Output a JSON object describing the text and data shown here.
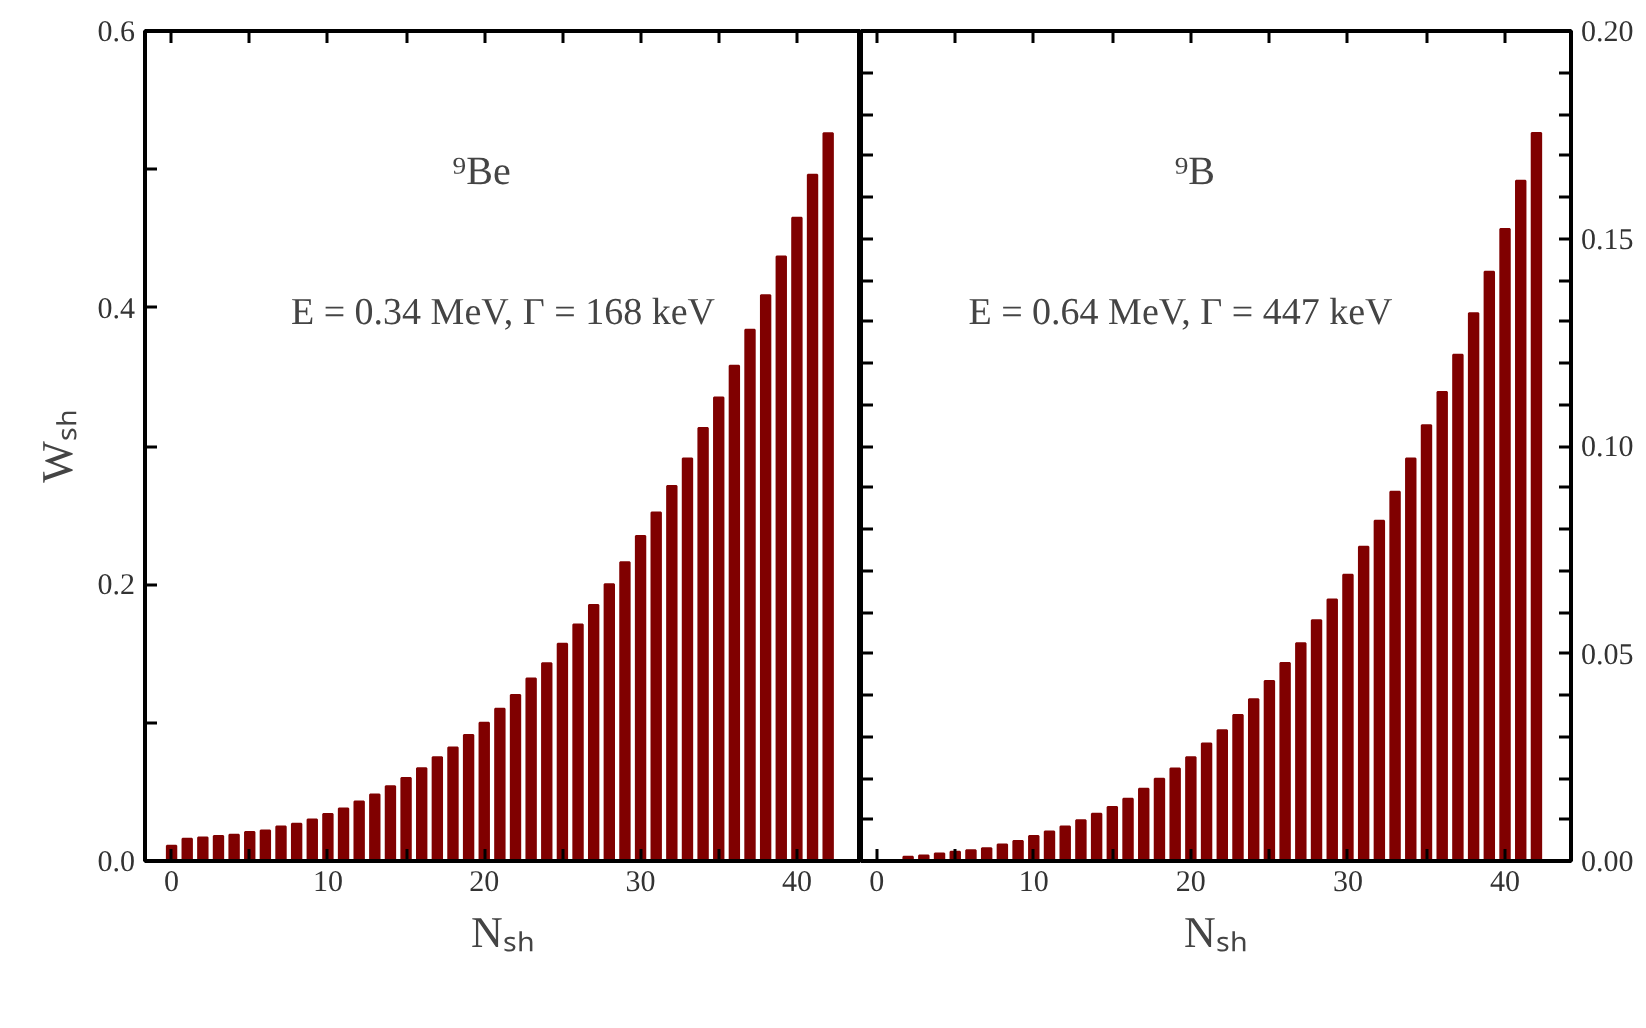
{
  "chart_data": [
    {
      "type": "bar",
      "xlabel": "Nₛₕ",
      "ylabel": "Wₛₕ",
      "annotations": [
        "⁹Be",
        "E = 0.34 MeV, Γ = 168 keV"
      ],
      "x": [
        0,
        1,
        2,
        3,
        4,
        5,
        6,
        7,
        8,
        9,
        10,
        11,
        12,
        13,
        14,
        15,
        16,
        17,
        18,
        19,
        20,
        21,
        22,
        23,
        24,
        25,
        26,
        27,
        28,
        29,
        30,
        31,
        32,
        33,
        34,
        35,
        36,
        37,
        38,
        39,
        40,
        41,
        42
      ],
      "series": [
        {
          "color": "#800000",
          "values": [
            0.011,
            0.016,
            0.017,
            0.018,
            0.019,
            0.021,
            0.022,
            0.025,
            0.027,
            0.03,
            0.034,
            0.038,
            0.043,
            0.048,
            0.054,
            0.06,
            0.067,
            0.075,
            0.082,
            0.091,
            0.1,
            0.11,
            0.12,
            0.132,
            0.143,
            0.157,
            0.171,
            0.185,
            0.2,
            0.216,
            0.235,
            0.252,
            0.271,
            0.291,
            0.313,
            0.335,
            0.358,
            0.384,
            0.409,
            0.437,
            0.465,
            0.496,
            0.526
          ]
        }
      ],
      "xlim": [
        -1.7,
        44.1
      ],
      "ylim": [
        0,
        0.6
      ],
      "xticks": [
        0,
        {
          "value": 5,
          "label": null
        },
        10,
        {
          "value": 15,
          "label": null
        },
        20,
        {
          "value": 25,
          "label": null
        },
        30,
        {
          "value": 35,
          "label": null
        },
        40
      ],
      "yticks": [
        {
          "value": 0,
          "label": "0.0"
        },
        {
          "value": 0.1,
          "label": null
        },
        {
          "value": 0.2,
          "label": "0.2"
        },
        {
          "value": 0.3,
          "label": null
        },
        {
          "value": 0.4,
          "label": "0.4"
        },
        {
          "value": 0.5,
          "label": null
        },
        {
          "value": 0.6,
          "label": "0.6"
        }
      ],
      "grid": false
    },
    {
      "type": "bar",
      "xlabel": "Nₛₕ",
      "annotations": [
        "⁹B",
        "E = 0.64 MeV, Γ = 447 keV"
      ],
      "x": [
        2,
        3,
        4,
        5,
        6,
        7,
        8,
        9,
        10,
        11,
        12,
        13,
        14,
        15,
        16,
        17,
        18,
        19,
        20,
        21,
        22,
        23,
        24,
        25,
        26,
        27,
        28,
        29,
        30,
        31,
        32,
        33,
        34,
        35,
        36,
        37,
        38,
        39,
        40,
        41,
        42
      ],
      "series": [
        {
          "color": "#800000",
          "axis": "y2",
          "values": [
            0.001,
            0.0013,
            0.0018,
            0.0022,
            0.0026,
            0.0031,
            0.004,
            0.0048,
            0.006,
            0.0071,
            0.0083,
            0.0098,
            0.0114,
            0.013,
            0.015,
            0.0174,
            0.0198,
            0.0223,
            0.025,
            0.0283,
            0.0315,
            0.0352,
            0.039,
            0.0434,
            0.0477,
            0.0525,
            0.058,
            0.063,
            0.069,
            0.0757,
            0.082,
            0.089,
            0.097,
            0.105,
            0.113,
            0.122,
            0.132,
            0.142,
            0.1523,
            0.1639,
            0.1754
          ]
        }
      ],
      "xlim": [
        -1.0,
        44.2
      ],
      "y2lim": [
        0,
        0.2
      ],
      "xticks": [
        0,
        {
          "value": 5,
          "label": null
        },
        10,
        {
          "value": 15,
          "label": null
        },
        20,
        {
          "value": 25,
          "label": null
        },
        30,
        {
          "value": 35,
          "label": null
        },
        40
      ],
      "y2ticks": [
        {
          "value": 0,
          "label": "0.00"
        },
        {
          "value": 0.01,
          "label": null
        },
        {
          "value": 0.02,
          "label": null
        },
        {
          "value": 0.03,
          "label": null
        },
        {
          "value": 0.04,
          "label": null
        },
        {
          "value": 0.05,
          "label": "0.05"
        },
        {
          "value": 0.06,
          "label": null
        },
        {
          "value": 0.07,
          "label": null
        },
        {
          "value": 0.08,
          "label": null
        },
        {
          "value": 0.09,
          "label": null
        },
        {
          "value": 0.1,
          "label": "0.10"
        },
        {
          "value": 0.11,
          "label": null
        },
        {
          "value": 0.12,
          "label": null
        },
        {
          "value": 0.13,
          "label": null
        },
        {
          "value": 0.14,
          "label": null
        },
        {
          "value": 0.15,
          "label": "0.15"
        },
        {
          "value": 0.16,
          "label": null
        },
        {
          "value": 0.17,
          "label": null
        },
        {
          "value": 0.18,
          "label": null
        },
        {
          "value": 0.19,
          "label": null
        },
        {
          "value": 0.2,
          "label": "0.20"
        }
      ],
      "grid": false
    }
  ]
}
